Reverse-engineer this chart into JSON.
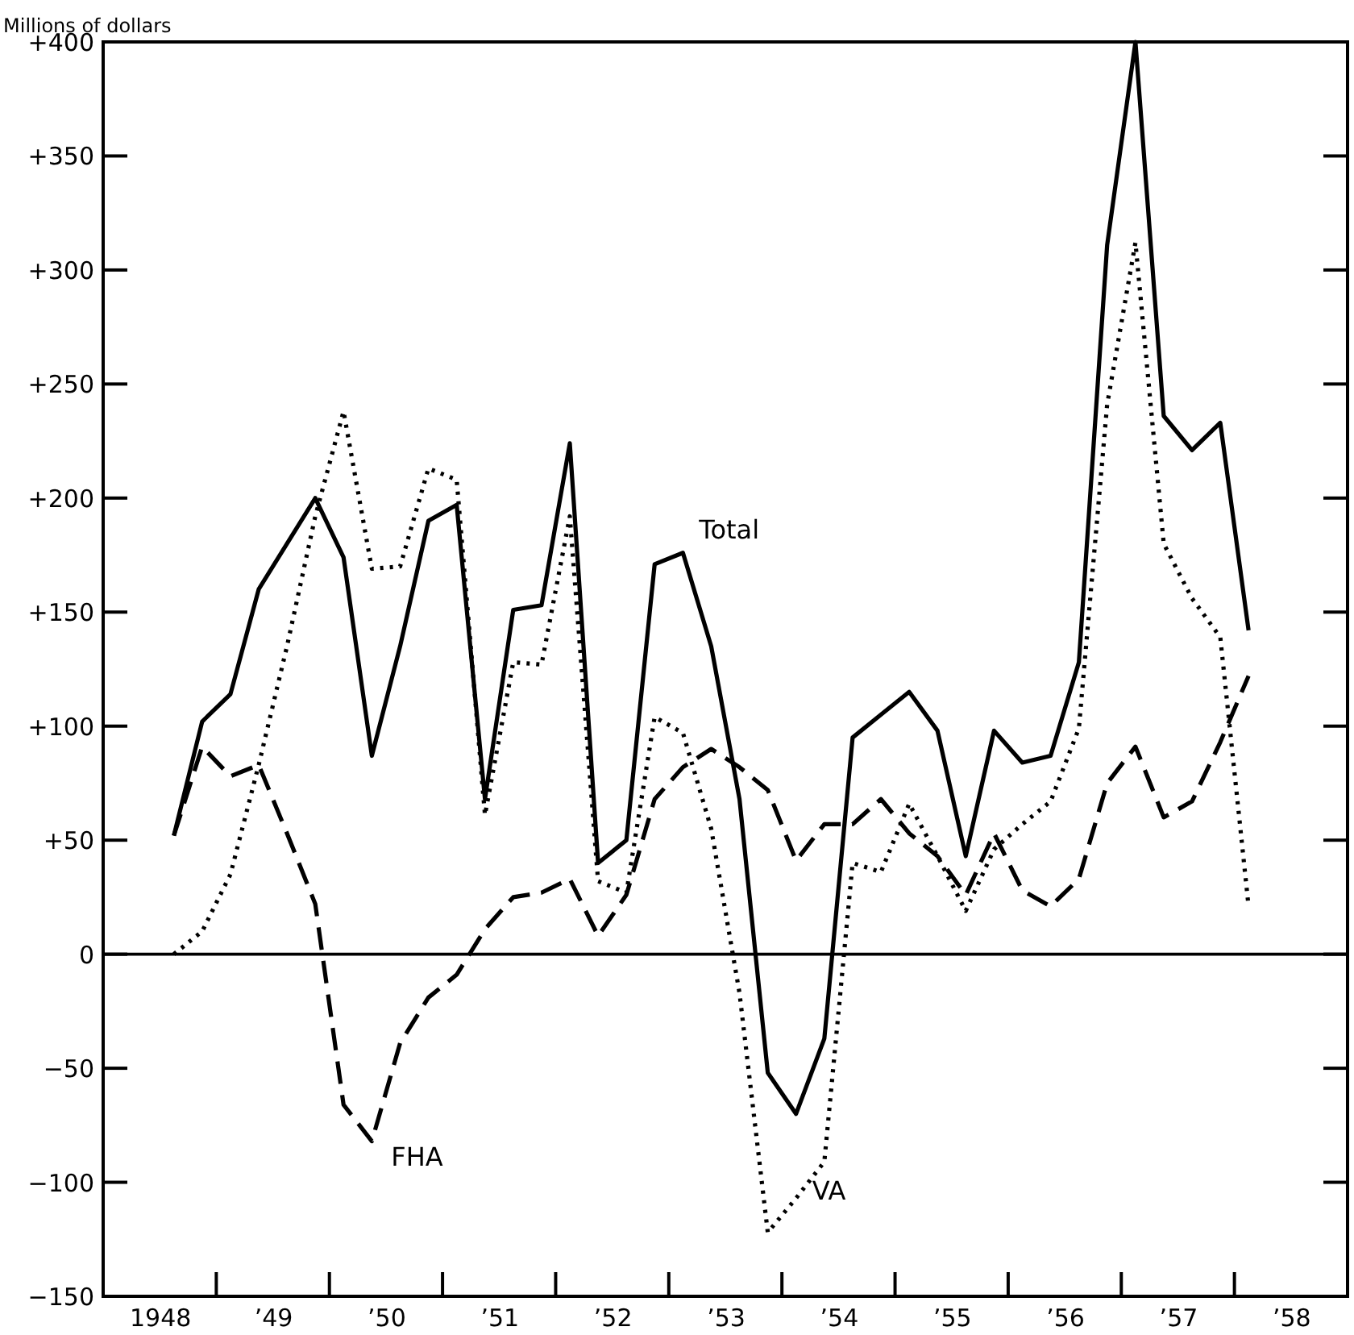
{
  "chart_data": {
    "type": "line",
    "ylabel": "Millions of dollars",
    "x": [
      1948.125,
      1948.375,
      1948.625,
      1948.875,
      1949.125,
      1949.375,
      1949.625,
      1949.875,
      1950.125,
      1950.375,
      1950.625,
      1950.875,
      1951.125,
      1951.375,
      1951.625,
      1951.875,
      1952.125,
      1952.375,
      1952.625,
      1952.875,
      1953.125,
      1953.375,
      1953.625,
      1953.875,
      1954.125,
      1954.375,
      1954.625,
      1954.875,
      1955.125,
      1955.375,
      1955.625,
      1955.875,
      1956.125,
      1956.375,
      1956.625,
      1956.875,
      1957.125,
      1957.375,
      1957.625
    ],
    "series": [
      {
        "name": "Total",
        "color": "#000000",
        "line_style": "solid",
        "values": [
          52,
          102,
          114,
          160,
          180,
          200,
          174,
          87,
          135,
          190,
          197,
          68,
          151,
          153,
          224,
          40,
          50,
          171,
          176,
          135,
          68,
          -52,
          -70,
          -37,
          95,
          105,
          115,
          98,
          43,
          98,
          84,
          87,
          128,
          311,
          400,
          236,
          221,
          233,
          142
        ]
      },
      {
        "name": "FHA",
        "color": "#000000",
        "line_style": "dashed",
        "values": [
          52,
          91,
          78,
          83,
          53,
          22,
          -66,
          -82,
          -39,
          -19,
          -9,
          11,
          25,
          27,
          33,
          8,
          26,
          68,
          82,
          90,
          82,
          72,
          41,
          57,
          57,
          68,
          53,
          43,
          26,
          53,
          28,
          21,
          33,
          75,
          91,
          60,
          67,
          93,
          122
        ]
      },
      {
        "name": "VA",
        "color": "#000000",
        "line_style": "dotted",
        "values": [
          0,
          10,
          35,
          83,
          135,
          192,
          238,
          169,
          170,
          213,
          208,
          61,
          128,
          127,
          192,
          32,
          27,
          104,
          97,
          55,
          -17,
          -122,
          -107,
          -91,
          40,
          36,
          66,
          43,
          19,
          46,
          57,
          67,
          99,
          241,
          312,
          180,
          156,
          139,
          21
        ]
      }
    ],
    "xlim": [
      1947.5,
      1958.5
    ],
    "xticks": [
      1948,
      {
        "value": 1948.5,
        "label": null
      },
      {
        "value": 1949,
        "label": "’49"
      },
      {
        "value": 1949.5,
        "label": null
      },
      {
        "value": 1950,
        "label": "’50"
      },
      {
        "value": 1950.5,
        "label": null
      },
      {
        "value": 1951,
        "label": "’51"
      },
      {
        "value": 1951.5,
        "label": null
      },
      {
        "value": 1952,
        "label": "’52"
      },
      {
        "value": 1952.5,
        "label": null
      },
      {
        "value": 1953,
        "label": "’53"
      },
      {
        "value": 1953.5,
        "label": null
      },
      {
        "value": 1954,
        "label": "’54"
      },
      {
        "value": 1954.5,
        "label": null
      },
      {
        "value": 1955,
        "label": "’55"
      },
      {
        "value": 1955.5,
        "label": null
      },
      {
        "value": 1956,
        "label": "’56"
      },
      {
        "value": 1956.5,
        "label": null
      },
      {
        "value": 1957,
        "label": "’57"
      },
      {
        "value": 1957.5,
        "label": null
      },
      {
        "value": 1958,
        "label": "’58"
      }
    ],
    "ylim": [
      -150,
      400
    ],
    "yticks": [
      {
        "value": -150,
        "label": "−150"
      },
      {
        "value": -100,
        "label": "−100"
      },
      {
        "value": -50,
        "label": "−50"
      },
      0,
      {
        "value": 50,
        "label": "+50"
      },
      {
        "value": 100,
        "label": "+100"
      },
      {
        "value": 150,
        "label": "+150"
      },
      {
        "value": 200,
        "label": "+200"
      },
      {
        "value": 250,
        "label": "+250"
      },
      {
        "value": 300,
        "label": "+300"
      },
      {
        "value": 350,
        "label": "+350"
      },
      {
        "value": 400,
        "label": "+400"
      }
    ],
    "ref_lines": [
      {
        "axis": "y",
        "value": 0,
        "color": "#000000",
        "line_style": "solid"
      }
    ],
    "grid": false
  }
}
